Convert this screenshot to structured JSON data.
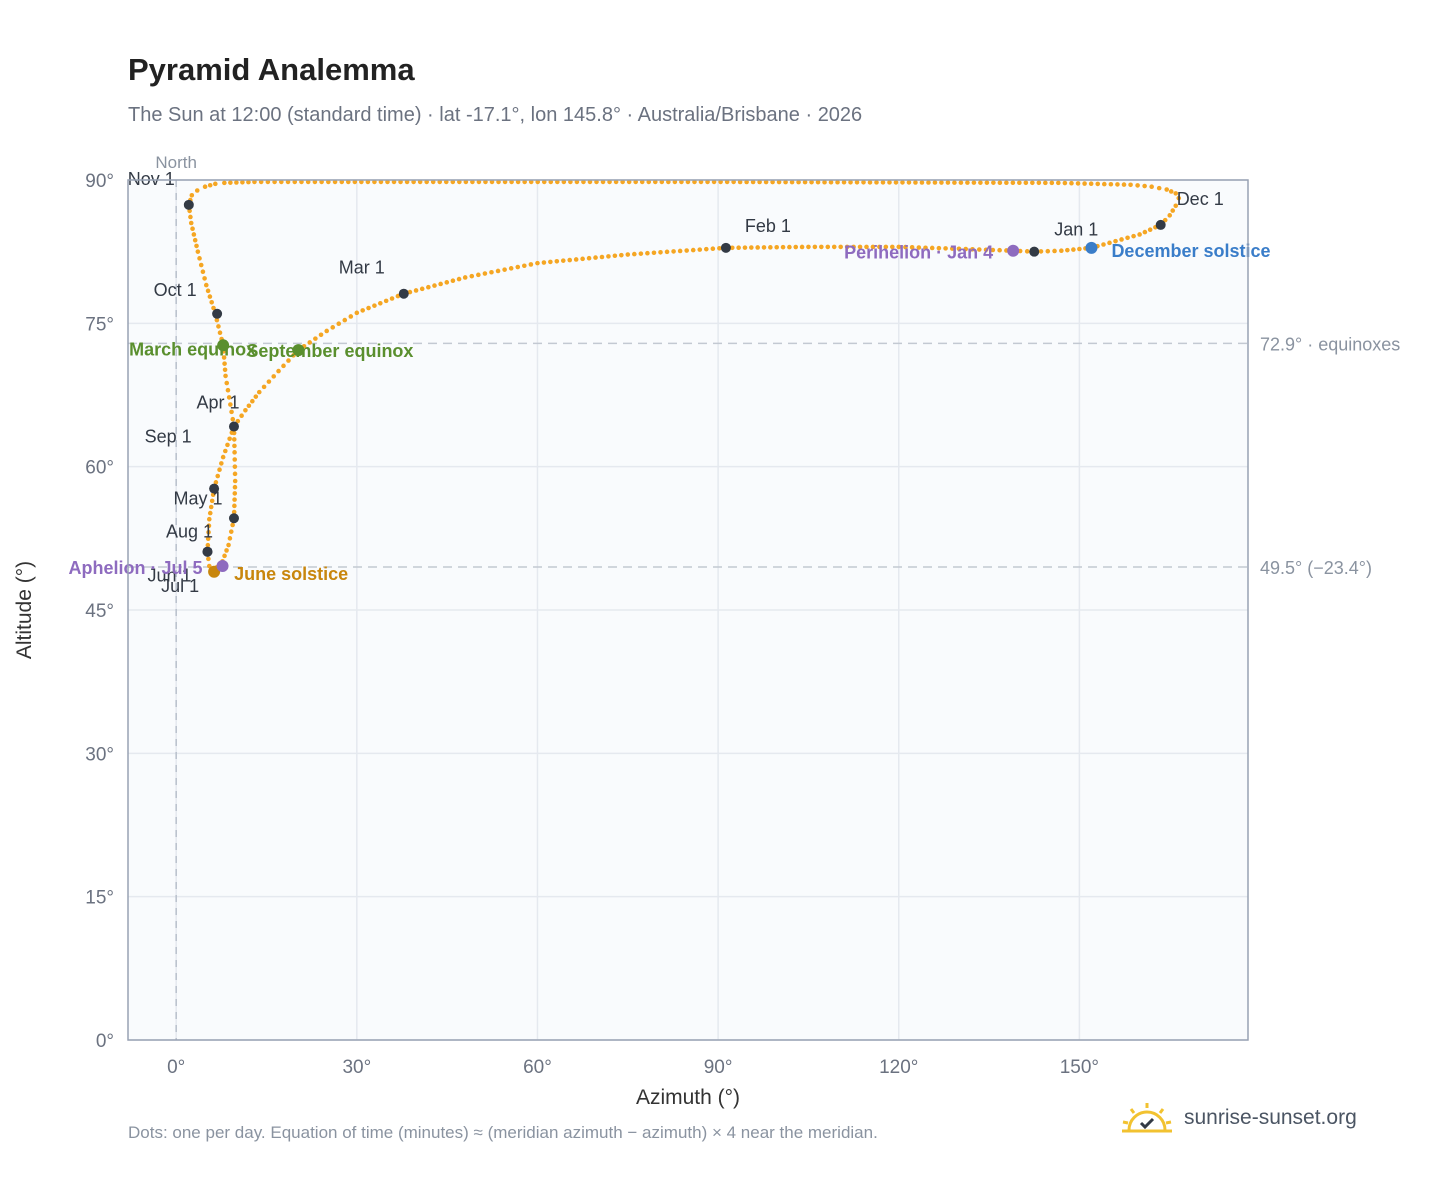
{
  "header": {
    "title": "Pyramid Analemma",
    "subtitle": "The Sun at 12:00 (standard time) · lat -17.1°, lon 145.8° · Australia/Brisbane · 2026"
  },
  "footer": {
    "note": "Dots: one per day. Equation of time (minutes) ≈ (meridian azimuth − azimuth) × 4 near the meridian.",
    "brand": "sunrise-sunset.org"
  },
  "colors": {
    "path": "#f5a623",
    "month_marker": "#333a45",
    "equinox": "#5a8f2e",
    "june_solstice": "#c8860d",
    "december_solstice": "#3a7dc9",
    "apsis": "#8e6bbf",
    "grid": "#e5e9ef",
    "plot_bg": "#f9fbfd",
    "axis": "#98a2b3",
    "reference_line": "#c3c9d2"
  },
  "chart_data": {
    "type": "scatter",
    "xlabel": "Azimuth (°)",
    "ylabel": "Altitude (°)",
    "xlim": [
      -8,
      178
    ],
    "ylim": [
      0,
      90
    ],
    "x_ticks": [
      0,
      30,
      60,
      90,
      120,
      150
    ],
    "y_ticks": [
      0,
      15,
      30,
      45,
      60,
      75,
      90
    ],
    "x_tick_labels": [
      "0°",
      "30°",
      "60°",
      "90°",
      "120°",
      "150°"
    ],
    "y_tick_labels": [
      "0°",
      "15°",
      "30°",
      "45°",
      "60°",
      "75°",
      "90°"
    ],
    "grid": true,
    "meridian": {
      "azimuth": 0,
      "label": "North"
    },
    "reference_lines": [
      {
        "altitude": 72.9,
        "label": "72.9° · equinoxes"
      },
      {
        "altitude": 49.5,
        "label": "49.5° (−23.4°)"
      }
    ],
    "path_points": [
      [
        2.1,
        87.4
      ],
      [
        2.6,
        88.4
      ],
      [
        3.5,
        88.9
      ],
      [
        4.8,
        89.3
      ],
      [
        6.5,
        89.6
      ],
      [
        8,
        89.7
      ],
      [
        13,
        89.8
      ],
      [
        27.5,
        89.8
      ],
      [
        91.5,
        89.8
      ],
      [
        146.5,
        89.7
      ],
      [
        158.5,
        89.5
      ],
      [
        162,
        89.3
      ],
      [
        164.5,
        89
      ],
      [
        166,
        88.6
      ],
      [
        166.5,
        88.1
      ],
      [
        166,
        87.3
      ],
      [
        165,
        86.3
      ],
      [
        163.5,
        85.3
      ],
      [
        160,
        84.3
      ],
      [
        156,
        83.6
      ],
      [
        152,
        82.9
      ],
      [
        147,
        82.6
      ],
      [
        142.5,
        82.5
      ],
      [
        139,
        82.6
      ],
      [
        130,
        82.8
      ],
      [
        120,
        83
      ],
      [
        105,
        83
      ],
      [
        91.3,
        82.9
      ],
      [
        75,
        82.2
      ],
      [
        60,
        81.3
      ],
      [
        48,
        79.8
      ],
      [
        37.8,
        78.1
      ],
      [
        30,
        76.1
      ],
      [
        25,
        74.2
      ],
      [
        20.3,
        72.2
      ],
      [
        17,
        70
      ],
      [
        13.8,
        67.8
      ],
      [
        11.5,
        65.9
      ],
      [
        9.6,
        64.2
      ],
      [
        7.8,
        61
      ],
      [
        6.3,
        57.7
      ],
      [
        5.5,
        54.5
      ],
      [
        5.2,
        51.1
      ],
      [
        5.5,
        49.6
      ],
      [
        6.3,
        49
      ],
      [
        6.8,
        49.5
      ],
      [
        7.7,
        50.1
      ],
      [
        8.7,
        51.8
      ],
      [
        9.6,
        54.6
      ],
      [
        9.8,
        58.5
      ],
      [
        9.7,
        61.5
      ],
      [
        9.6,
        64.2
      ],
      [
        9,
        66.5
      ],
      [
        8.2,
        69.5
      ],
      [
        7.8,
        72.7
      ],
      [
        6.5,
        76
      ],
      [
        5,
        79
      ],
      [
        3.6,
        82.5
      ],
      [
        2.5,
        85.5
      ],
      [
        2.1,
        87.4
      ]
    ],
    "month_markers": [
      {
        "label": "Jan 1",
        "x": 142.5,
        "y": 82.5
      },
      {
        "label": "Feb 1",
        "x": 91.3,
        "y": 82.9
      },
      {
        "label": "Mar 1",
        "x": 37.8,
        "y": 78.1
      },
      {
        "label": "Apr 1",
        "x": 9.6,
        "y": 64.2
      },
      {
        "label": "May 1",
        "x": 9.6,
        "y": 54.6
      },
      {
        "label": "Jun 1",
        "x": 5.2,
        "y": 51.1
      },
      {
        "label": "Jul 1",
        "x": 6.3,
        "y": 49.0
      },
      {
        "label": "Aug 1",
        "x": 5.2,
        "y": 51.1
      },
      {
        "label": "Sep 1",
        "x": 6.3,
        "y": 57.7
      },
      {
        "label": "Oct 1",
        "x": 6.8,
        "y": 76.0
      },
      {
        "label": "Nov 1",
        "x": 2.1,
        "y": 87.4
      },
      {
        "label": "Dec 1",
        "x": 163.5,
        "y": 85.3
      }
    ],
    "events": [
      {
        "label": "March equinox",
        "x": 7.8,
        "y": 72.7,
        "color": "#5a8f2e"
      },
      {
        "label": "September equinox",
        "x": 20.3,
        "y": 72.2,
        "color": "#5a8f2e"
      },
      {
        "label": "June solstice",
        "x": 6.3,
        "y": 49.0,
        "color": "#c8860d"
      },
      {
        "label": "December solstice",
        "x": 152.0,
        "y": 82.9,
        "color": "#3a7dc9"
      },
      {
        "label": "Perihelion · Jan 4",
        "x": 139.0,
        "y": 82.6,
        "color": "#8e6bbf"
      },
      {
        "label": "Aphelion · Jul 5",
        "x": 7.7,
        "y": 49.6,
        "color": "#8e6bbf"
      }
    ]
  }
}
